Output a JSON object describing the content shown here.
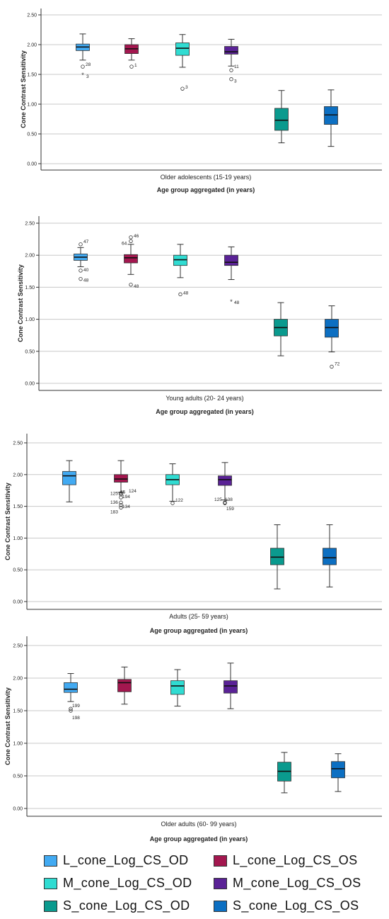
{
  "chart_data": [
    {
      "type": "boxplot",
      "ylabel": "Cone Contrast Sensitivity",
      "xlabel": "Age group aggregated  (in years)",
      "category": "Older adolescents (15-19 years)",
      "ylim": [
        -0.1,
        2.55
      ],
      "yticks": [
        0.0,
        0.5,
        1.0,
        1.5,
        2.0,
        2.5
      ],
      "ytick_labels": [
        "0.00",
        "0.50",
        "1.00",
        "1.50",
        "2.00",
        "2.50"
      ],
      "grid": true,
      "boxes": [
        {
          "series": 0,
          "min": 1.74,
          "q1": 1.9,
          "median": 1.96,
          "q3": 2.01,
          "max": 2.18,
          "outliers": [
            {
              "value": 1.63,
              "label": "28",
              "marker": "circle"
            },
            {
              "value": 1.49,
              "label": "3",
              "marker": "star"
            }
          ]
        },
        {
          "series": 1,
          "min": 1.74,
          "q1": 1.85,
          "median": 1.93,
          "q3": 2.0,
          "max": 2.1,
          "outliers": [
            {
              "value": 1.63,
              "label": "1",
              "marker": "circle"
            }
          ]
        },
        {
          "series": 2,
          "min": 1.62,
          "q1": 1.82,
          "median": 1.94,
          "q3": 2.03,
          "max": 2.17,
          "outliers": [
            {
              "value": 1.26,
              "label": "3",
              "marker": "circle"
            }
          ]
        },
        {
          "series": 3,
          "min": 1.64,
          "q1": 1.84,
          "median": 1.88,
          "q3": 1.97,
          "max": 2.09,
          "outliers": [
            {
              "value": 1.57,
              "label": "11",
              "marker": "circle"
            },
            {
              "value": 1.42,
              "label": "3",
              "marker": "circle"
            }
          ]
        },
        {
          "series": 4,
          "min": 0.35,
          "q1": 0.56,
          "median": 0.73,
          "q3": 0.93,
          "max": 1.23,
          "outliers": []
        },
        {
          "series": 5,
          "min": 0.29,
          "q1": 0.66,
          "median": 0.82,
          "q3": 0.96,
          "max": 1.24,
          "outliers": []
        }
      ]
    },
    {
      "type": "boxplot",
      "ylabel": "Cone Contrast Sensitivity",
      "xlabel": "Age group aggregated  (in years)",
      "category": "Young adults (20- 24 years)",
      "ylim": [
        -0.05,
        2.6
      ],
      "yticks": [
        0.0,
        0.5,
        1.0,
        1.5,
        2.0,
        2.5
      ],
      "ytick_labels": [
        "0.00",
        "0.50",
        "1.00",
        "1.50",
        "2.00",
        "2.50"
      ],
      "grid": true,
      "boxes": [
        {
          "series": 0,
          "min": 1.82,
          "q1": 1.92,
          "median": 1.97,
          "q3": 2.02,
          "max": 2.12,
          "outliers": [
            {
              "value": 2.17,
              "label": "47",
              "marker": "circle"
            },
            {
              "value": 1.76,
              "label": "40",
              "marker": "circle"
            },
            {
              "value": 1.63,
              "label": "48",
              "marker": "circle"
            }
          ]
        },
        {
          "series": 1,
          "min": 1.7,
          "q1": 1.88,
          "median": 1.96,
          "q3": 2.01,
          "max": 2.17,
          "outliers": [
            {
              "value": 2.28,
              "label": "46",
              "marker": "circle"
            },
            {
              "value": 2.22,
              "label": "64",
              "marker": "circle"
            },
            {
              "value": 1.54,
              "label": "48",
              "marker": "circle"
            }
          ]
        },
        {
          "series": 2,
          "min": 1.65,
          "q1": 1.84,
          "median": 1.93,
          "q3": 2.0,
          "max": 2.17,
          "outliers": [
            {
              "value": 1.39,
              "label": "48",
              "marker": "circle"
            }
          ]
        },
        {
          "series": 3,
          "min": 1.62,
          "q1": 1.84,
          "median": 1.89,
          "q3": 2.0,
          "max": 2.13,
          "outliers": [
            {
              "value": 1.27,
              "label": "48",
              "marker": "star"
            }
          ]
        },
        {
          "series": 4,
          "min": 0.43,
          "q1": 0.74,
          "median": 0.87,
          "q3": 1.0,
          "max": 1.26,
          "outliers": []
        },
        {
          "series": 5,
          "min": 0.49,
          "q1": 0.72,
          "median": 0.87,
          "q3": 1.0,
          "max": 1.21,
          "outliers": [
            {
              "value": 0.26,
              "label": "72",
              "marker": "circle"
            }
          ]
        }
      ]
    },
    {
      "type": "boxplot",
      "ylabel": "Cone Contrast Sensitivity",
      "xlabel": "Age group aggregated  (in years)",
      "category": "Adults (25- 59 years)",
      "ylim": [
        -0.15,
        2.75
      ],
      "yticks": [
        0.0,
        0.5,
        1.0,
        1.5,
        2.0,
        2.5
      ],
      "ytick_labels": [
        "0.00",
        "0.50",
        "1.00",
        "1.50",
        "2.00",
        "2.50"
      ],
      "grid": true,
      "boxes": [
        {
          "series": 0,
          "min": 1.57,
          "q1": 1.84,
          "median": 1.98,
          "q3": 2.05,
          "max": 2.22,
          "outliers": []
        },
        {
          "series": 1,
          "min": 1.72,
          "q1": 1.88,
          "median": 1.93,
          "q3": 2.0,
          "max": 2.22,
          "outliers": [
            {
              "value": 1.69,
              "label": "125",
              "marker": "circle"
            },
            {
              "value": 1.69,
              "label": "85",
              "marker": "circle"
            },
            {
              "value": 1.71,
              "label": "124",
              "marker": "circle"
            },
            {
              "value": 1.64,
              "label": "194",
              "marker": "circle"
            },
            {
              "value": 1.56,
              "label": "136",
              "marker": "circle"
            },
            {
              "value": 1.52,
              "label": "134",
              "marker": "circle"
            },
            {
              "value": 1.48,
              "label": "183",
              "marker": "circle"
            }
          ]
        },
        {
          "series": 2,
          "min": 1.58,
          "q1": 1.84,
          "median": 1.92,
          "q3": 2.0,
          "max": 2.17,
          "outliers": [
            {
              "value": 1.55,
              "label": "122",
              "marker": "circle"
            }
          ]
        },
        {
          "series": 3,
          "min": 1.6,
          "q1": 1.83,
          "median": 1.92,
          "q3": 1.98,
          "max": 2.19,
          "outliers": [
            {
              "value": 1.56,
              "label": "125",
              "marker": "circle"
            },
            {
              "value": 1.56,
              "label": "138",
              "marker": "circle"
            },
            {
              "value": 1.55,
              "label": "159",
              "marker": "circle"
            }
          ]
        },
        {
          "series": 4,
          "min": 0.2,
          "q1": 0.58,
          "median": 0.7,
          "q3": 0.84,
          "max": 1.21,
          "outliers": []
        },
        {
          "series": 5,
          "min": 0.23,
          "q1": 0.58,
          "median": 0.69,
          "q3": 0.84,
          "max": 1.21,
          "outliers": []
        }
      ]
    },
    {
      "type": "boxplot",
      "ylabel": "Cone Contrast Sensitivity",
      "xlabel": "Age group aggregated  (in years)",
      "category": "Older adults (60- 99 years)",
      "ylim": [
        -0.1,
        2.6
      ],
      "yticks": [
        0.0,
        0.5,
        1.0,
        1.5,
        2.0,
        2.5
      ],
      "ytick_labels": [
        "0.00",
        "0.50",
        "1.00",
        "1.50",
        "2.00",
        "2.50"
      ],
      "grid": true,
      "boxes": [
        {
          "series": 0,
          "min": 1.64,
          "q1": 1.78,
          "median": 1.83,
          "q3": 1.93,
          "max": 2.07,
          "outliers": [
            {
              "value": 1.53,
              "label": "199",
              "marker": "circle"
            },
            {
              "value": 1.5,
              "label": "198",
              "marker": "circle"
            }
          ]
        },
        {
          "series": 1,
          "min": 1.6,
          "q1": 1.79,
          "median": 1.93,
          "q3": 1.98,
          "max": 2.17,
          "outliers": []
        },
        {
          "series": 2,
          "min": 1.57,
          "q1": 1.75,
          "median": 1.88,
          "q3": 1.96,
          "max": 2.13,
          "outliers": []
        },
        {
          "series": 3,
          "min": 1.53,
          "q1": 1.77,
          "median": 1.88,
          "q3": 1.96,
          "max": 2.23,
          "outliers": []
        },
        {
          "series": 4,
          "min": 0.24,
          "q1": 0.42,
          "median": 0.57,
          "q3": 0.71,
          "max": 0.86,
          "outliers": []
        },
        {
          "series": 5,
          "min": 0.26,
          "q1": 0.47,
          "median": 0.61,
          "q3": 0.72,
          "max": 0.84,
          "outliers": []
        }
      ]
    }
  ],
  "legend": {
    "placement": "bottom",
    "items": [
      {
        "label": "L_cone_Log_CS_OD",
        "color": "#42aaf2"
      },
      {
        "label": "L_cone_Log_CS_OS",
        "color": "#a3174f"
      },
      {
        "label": "M_cone_Log_CS_OD",
        "color": "#30dcd2"
      },
      {
        "label": "M_cone_Log_CS_OS",
        "color": "#5a2296"
      },
      {
        "label": "S_cone_Log_CS_OD",
        "color": "#0a9a8e"
      },
      {
        "label": "S_cone_Log_CS_OS",
        "color": "#0c6fc2"
      }
    ]
  }
}
